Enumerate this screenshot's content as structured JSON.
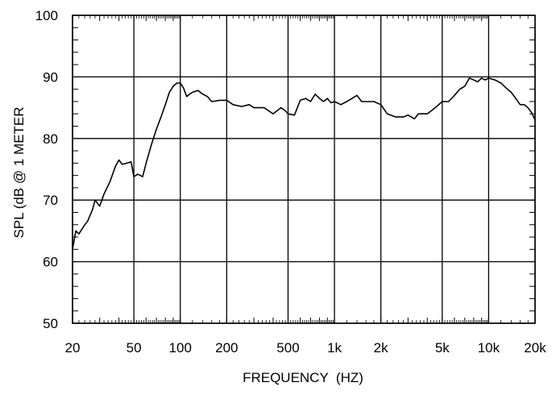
{
  "chart_data": {
    "type": "line",
    "title": "",
    "xlabel": "FREQUENCY  (HZ)",
    "ylabel": "SPL (dB @ 1 METER",
    "xscale": "log",
    "xlim": [
      20,
      20000
    ],
    "ylim": [
      50,
      100
    ],
    "grid": true,
    "xticks": [
      {
        "value": 20,
        "label": "20"
      },
      {
        "value": 50,
        "label": "50"
      },
      {
        "value": 100,
        "label": "100"
      },
      {
        "value": 200,
        "label": "200"
      },
      {
        "value": 500,
        "label": "500"
      },
      {
        "value": 1000,
        "label": "1k"
      },
      {
        "value": 2000,
        "label": "2k"
      },
      {
        "value": 5000,
        "label": "5k"
      },
      {
        "value": 10000,
        "label": "10k"
      },
      {
        "value": 20000,
        "label": "20k"
      }
    ],
    "yticks": [
      {
        "value": 50,
        "label": "50"
      },
      {
        "value": 60,
        "label": "60"
      },
      {
        "value": 70,
        "label": "70"
      },
      {
        "value": 80,
        "label": "80"
      },
      {
        "value": 90,
        "label": "90"
      },
      {
        "value": 100,
        "label": "100"
      }
    ],
    "series": [
      {
        "color": "#000000",
        "x": [
          20,
          21,
          22,
          24,
          25,
          27,
          28,
          30,
          32,
          35,
          38,
          40,
          42,
          45,
          48,
          50,
          53,
          57,
          60,
          65,
          70,
          75,
          80,
          85,
          90,
          95,
          100,
          105,
          110,
          115,
          120,
          130,
          140,
          150,
          160,
          180,
          200,
          220,
          250,
          280,
          300,
          350,
          400,
          450,
          480,
          500,
          550,
          600,
          650,
          700,
          750,
          800,
          850,
          900,
          950,
          1000,
          1100,
          1200,
          1300,
          1400,
          1500,
          1600,
          1800,
          2000,
          2200,
          2500,
          2800,
          3000,
          3300,
          3500,
          4000,
          4500,
          5000,
          5500,
          6000,
          6500,
          7000,
          7500,
          8000,
          8500,
          9000,
          9500,
          10000,
          11000,
          12000,
          13000,
          14000,
          15000,
          16000,
          17000,
          18000,
          19000,
          20000
        ],
        "y": [
          62,
          65,
          64.5,
          66,
          66.5,
          68.5,
          70,
          69,
          71,
          73,
          75.5,
          76.5,
          75.8,
          76,
          76.2,
          73.8,
          74.2,
          73.8,
          76,
          79,
          81.5,
          83.5,
          85.5,
          87.5,
          88.5,
          89,
          89,
          88.2,
          86.8,
          87.2,
          87.5,
          87.8,
          87.2,
          86.8,
          86,
          86.2,
          86.2,
          85.5,
          85.2,
          85.5,
          85,
          85,
          84,
          85,
          84.5,
          84,
          83.8,
          86.2,
          86.5,
          86,
          87.2,
          86.5,
          86,
          86.5,
          85.8,
          86,
          85.5,
          86,
          86.5,
          87,
          86,
          86,
          86,
          85.5,
          84,
          83.5,
          83.5,
          83.8,
          83.2,
          84,
          84,
          85,
          86,
          86,
          87,
          88,
          88.5,
          89.8,
          89.5,
          89.2,
          89.8,
          89.5,
          89.8,
          89.5,
          89,
          88.2,
          87.5,
          86.5,
          85.5,
          85.5,
          85,
          84.2,
          83
        ]
      }
    ]
  }
}
